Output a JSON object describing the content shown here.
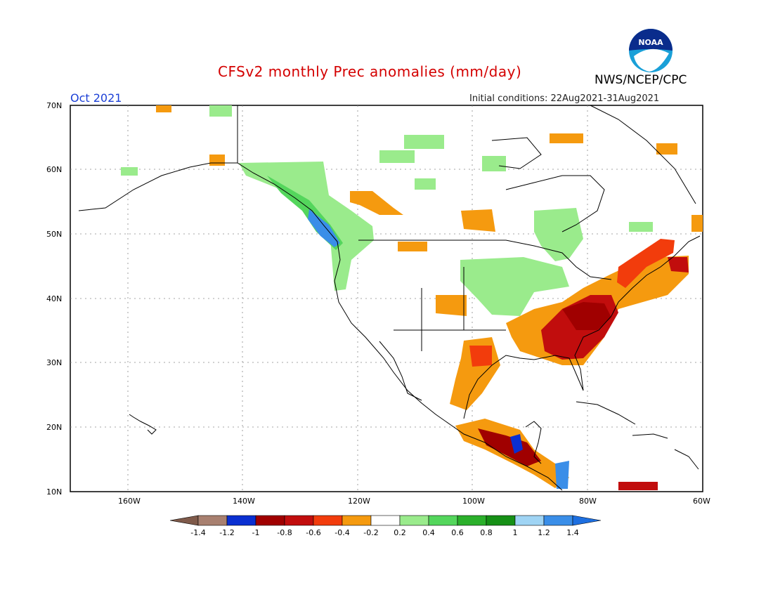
{
  "header": {
    "title": "CFSv2 monthly Prec anomalies (mm/day)",
    "agency": "NWS/NCEP/CPC",
    "month": "Oct 2021",
    "initial_conditions": "Initial conditions: 22Aug2021-31Aug2021"
  },
  "logo": {
    "text": "NOAA",
    "icon": "noaa-logo-icon"
  },
  "axes": {
    "lat_labels": [
      "70N",
      "60N",
      "50N",
      "40N",
      "30N",
      "20N",
      "10N"
    ],
    "lon_labels": [
      "160W",
      "140W",
      "120W",
      "100W",
      "80W",
      "60W"
    ]
  },
  "colorbar": {
    "labels": [
      "-1.4",
      "-1.2",
      "-1",
      "-0.8",
      "-0.6",
      "-0.4",
      "-0.2",
      "0.2",
      "0.4",
      "0.6",
      "0.8",
      "1",
      "1.2",
      "1.4"
    ],
    "colors": [
      "#7f5a4a",
      "#a88070",
      "#0a2fd1",
      "#a00000",
      "#c10d0d",
      "#f23c0c",
      "#f59a0f",
      "#ffffff",
      "#9aeb8c",
      "#54d65c",
      "#2bb02b",
      "#169016",
      "#9fd4f4",
      "#3a8ee8",
      "#1d6fe0"
    ]
  },
  "colors": {
    "title": "#d40000",
    "month": "#1b3fd6",
    "dry_strong": "#a00000",
    "dry": "#f59a0f",
    "wet": "#54d65c",
    "wet_strong": "#3a8ee8"
  }
}
